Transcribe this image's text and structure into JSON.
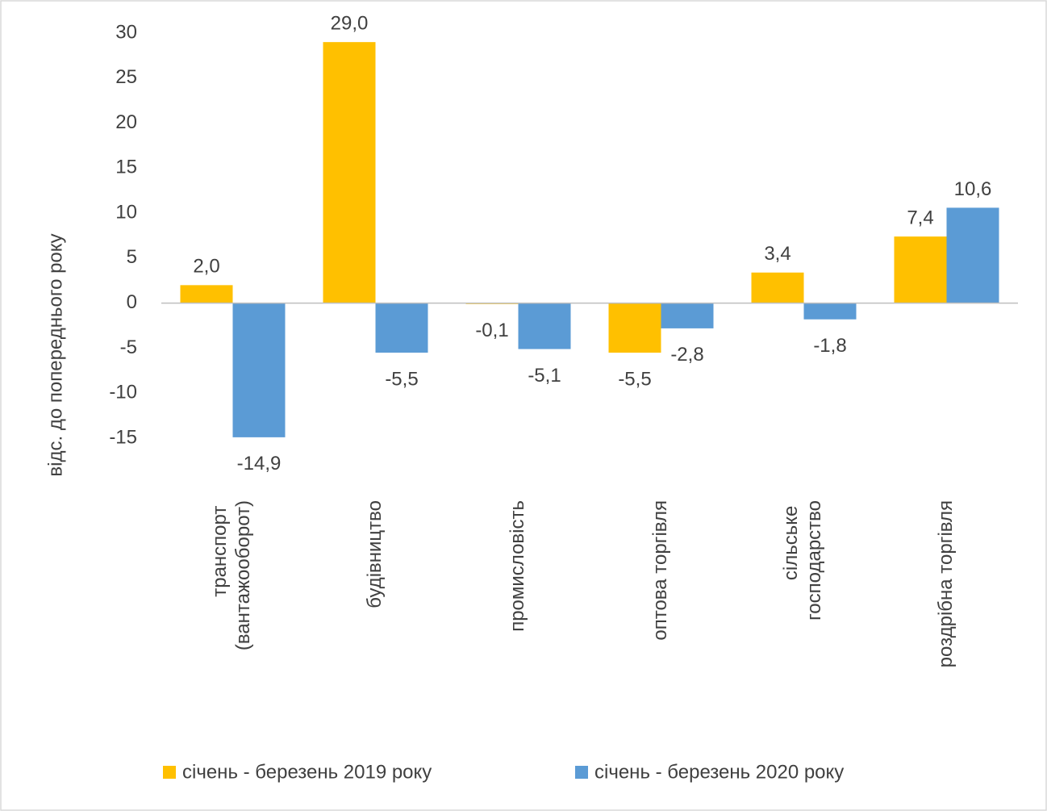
{
  "chart_data": {
    "type": "bar",
    "y_label": "відс. до попереднього року",
    "categories": [
      "транспорт (вантажооборот)",
      "будівництво",
      "промисловість",
      "оптова торгівля",
      "сільське господарство",
      "роздрібна торгівля"
    ],
    "series": [
      {
        "name": "січень - березень 2019 року",
        "color": "#FFC000",
        "values": [
          2.0,
          29.0,
          -0.1,
          -5.5,
          3.4,
          7.4
        ],
        "value_labels": [
          "2,0",
          "29,0",
          "-0,1",
          "-5,5",
          "3,4",
          "7,4"
        ]
      },
      {
        "name": "січень - березень 2020 року",
        "color": "#5B9BD5",
        "values": [
          -14.9,
          -5.5,
          -5.1,
          -2.8,
          -1.8,
          10.6
        ],
        "value_labels": [
          "-14,9",
          "-5,5",
          "-5,1",
          "-2,8",
          "-1,8",
          "10,6"
        ]
      }
    ],
    "ylim": [
      -15,
      30
    ],
    "yticks": [
      -15,
      -10,
      -5,
      0,
      5,
      10,
      15,
      20,
      25,
      30
    ],
    "grid": false,
    "legend": "bottom"
  }
}
